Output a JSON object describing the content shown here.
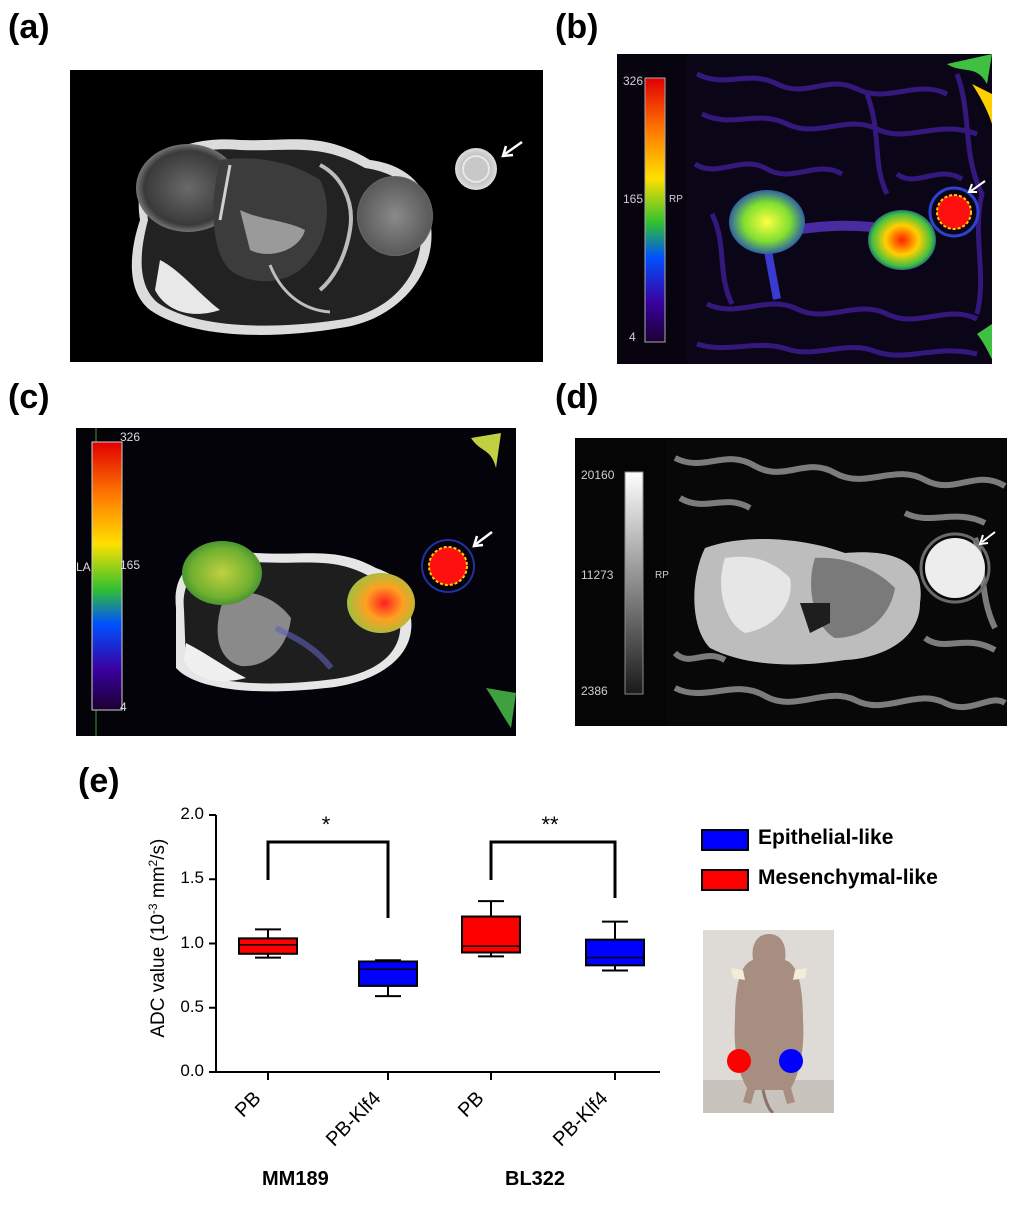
{
  "panels": {
    "a": {
      "label": "(a)"
    },
    "b": {
      "label": "(b)",
      "colorbar": {
        "max": "326",
        "mid": "165",
        "min": "4",
        "unit": "RP"
      }
    },
    "c": {
      "label": "(c)",
      "colorbar": {
        "max": "326",
        "mid": "165",
        "min": "4",
        "side_label": "LA"
      }
    },
    "d": {
      "label": "(d)",
      "colorbar": {
        "max": "20160",
        "mid": "11273",
        "min": "2386",
        "unit": "RP"
      }
    },
    "e": {
      "label": "(e)"
    }
  },
  "colors": {
    "epithelial": "#0000ff",
    "mesenchymal": "#ff0000"
  },
  "chart_data": {
    "type": "box",
    "ylabel": "ADC value (10⁻³ mm²/s)",
    "ylabel_parts": {
      "main": "ADC value (10",
      "exp1": "-3",
      "mid": " mm",
      "exp2": "2",
      "end": "/s)"
    },
    "ylim": [
      0.0,
      2.0
    ],
    "yticks": [
      "0.0",
      "0.5",
      "1.0",
      "1.5",
      "2.0"
    ],
    "categories": [
      "PB",
      "PB-Klf4",
      "PB",
      "PB-Klf4"
    ],
    "groups": [
      {
        "name": "MM189",
        "categories": [
          "PB",
          "PB-Klf4"
        ]
      },
      {
        "name": "BL322",
        "categories": [
          "PB",
          "PB-Klf4"
        ]
      }
    ],
    "boxes": [
      {
        "category": "PB",
        "group": "MM189",
        "series": "Mesenchymal-like",
        "min": 0.89,
        "q1": 0.92,
        "median": 0.99,
        "q3": 1.04,
        "max": 1.11
      },
      {
        "category": "PB-Klf4",
        "group": "MM189",
        "series": "Epithelial-like",
        "min": 0.59,
        "q1": 0.67,
        "median": 0.8,
        "q3": 0.86,
        "max": 0.87
      },
      {
        "category": "PB",
        "group": "BL322",
        "series": "Mesenchymal-like",
        "min": 0.9,
        "q1": 0.93,
        "median": 0.98,
        "q3": 1.21,
        "max": 1.33
      },
      {
        "category": "PB-Klf4",
        "group": "BL322",
        "series": "Epithelial-like",
        "min": 0.79,
        "q1": 0.83,
        "median": 0.89,
        "q3": 1.03,
        "max": 1.17
      }
    ],
    "significance": [
      {
        "between": [
          "MM189 PB",
          "MM189 PB-Klf4"
        ],
        "label": "*"
      },
      {
        "between": [
          "BL322 PB",
          "BL322 PB-Klf4"
        ],
        "label": "**"
      }
    ],
    "legend": [
      {
        "name": "Epithelial-like",
        "color": "#0000ff"
      },
      {
        "name": "Mesenchymal-like",
        "color": "#ff0000"
      }
    ],
    "legend_position": "right"
  }
}
